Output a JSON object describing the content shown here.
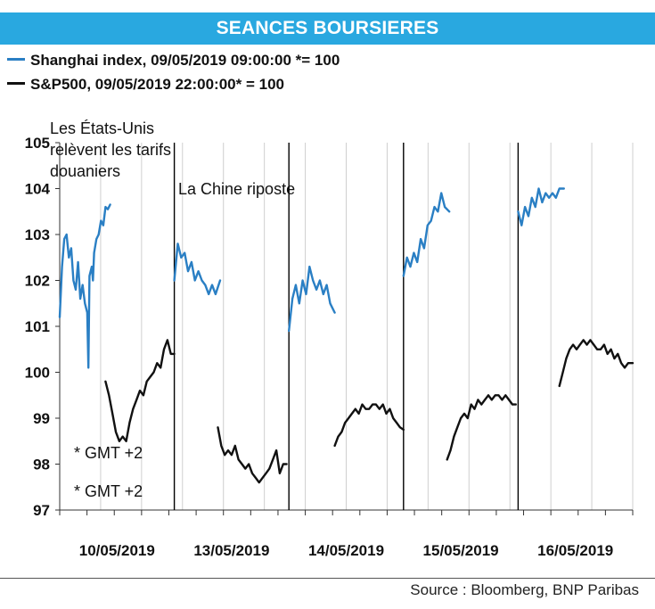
{
  "banner": {
    "title": "SEANCES BOURSIERES"
  },
  "legend": [
    {
      "label": "Shanghai index, 09/05/2019 09:00:00 *= 100",
      "color": "#2a7fc4"
    },
    {
      "label": "S&P500, 09/05/2019 22:00:00* = 100",
      "color": "#111111"
    }
  ],
  "source": "Source : Bloomberg, BNP Paribas",
  "chart_data": {
    "type": "line",
    "title": "SEANCES BOURSIERES",
    "xlabel": "",
    "ylabel": "",
    "ylim": [
      97,
      105
    ],
    "yticks": [
      97,
      98,
      99,
      100,
      101,
      102,
      103,
      104,
      105
    ],
    "x_day_labels": [
      "10/05/2019",
      "13/05/2019",
      "14/05/2019",
      "15/05/2019",
      "16/05/2019"
    ],
    "annotations": [
      {
        "text": "Les États-Unis relèvent les tarifs douaniers",
        "lines": [
          "Les États-Unis",
          "relèvent les tarifs",
          "douaniers"
        ]
      },
      {
        "text": "La Chine riposte"
      },
      {
        "text": "* GMT +2"
      },
      {
        "text": "* GMT +2"
      }
    ],
    "series": [
      {
        "name": "Shanghai index, 09/05/2019 09:00:00 *= 100",
        "color": "#2a7fc4",
        "sessions": [
          {
            "day": "10/05/2019",
            "x": [
              0.0,
              0.02,
              0.04,
              0.06,
              0.08,
              0.1,
              0.12,
              0.14,
              0.16,
              0.18,
              0.2,
              0.22,
              0.24,
              0.25,
              0.26,
              0.28,
              0.29,
              0.3,
              0.32,
              0.34,
              0.36,
              0.38,
              0.4,
              0.42,
              0.44
            ],
            "y": [
              101.2,
              102.3,
              102.9,
              103.0,
              102.5,
              102.7,
              102.0,
              101.8,
              102.4,
              101.6,
              101.9,
              101.5,
              101.3,
              100.1,
              102.1,
              102.3,
              102.0,
              102.6,
              102.9,
              103.0,
              103.3,
              103.2,
              103.6,
              103.55,
              103.65
            ]
          },
          {
            "day": "13/05/2019",
            "x": [
              0.0,
              0.03,
              0.06,
              0.09,
              0.12,
              0.15,
              0.18,
              0.21,
              0.24,
              0.27,
              0.3,
              0.33,
              0.36,
              0.4
            ],
            "y": [
              102.0,
              102.8,
              102.5,
              102.6,
              102.2,
              102.4,
              102.0,
              102.2,
              102.0,
              101.9,
              101.7,
              101.9,
              101.7,
              102.0
            ]
          },
          {
            "day": "14/05/2019",
            "x": [
              0.0,
              0.03,
              0.06,
              0.09,
              0.12,
              0.15,
              0.18,
              0.21,
              0.24,
              0.27,
              0.3,
              0.33,
              0.36,
              0.4
            ],
            "y": [
              100.9,
              101.6,
              101.9,
              101.5,
              102.0,
              101.7,
              102.3,
              102.0,
              101.8,
              102.0,
              101.7,
              101.9,
              101.5,
              101.3
            ]
          },
          {
            "day": "15/05/2019",
            "x": [
              0.0,
              0.03,
              0.06,
              0.09,
              0.12,
              0.15,
              0.18,
              0.21,
              0.24,
              0.27,
              0.3,
              0.33,
              0.36,
              0.4
            ],
            "y": [
              102.1,
              102.5,
              102.3,
              102.6,
              102.4,
              102.9,
              102.7,
              103.2,
              103.3,
              103.6,
              103.5,
              103.9,
              103.6,
              103.5
            ]
          },
          {
            "day": "16/05/2019",
            "x": [
              0.0,
              0.03,
              0.06,
              0.09,
              0.12,
              0.15,
              0.18,
              0.21,
              0.24,
              0.27,
              0.3,
              0.33,
              0.36,
              0.4
            ],
            "y": [
              103.5,
              103.2,
              103.6,
              103.4,
              103.8,
              103.6,
              104.0,
              103.7,
              103.9,
              103.8,
              103.9,
              103.8,
              104.0,
              104.0
            ]
          }
        ]
      },
      {
        "name": "S&P500, 09/05/2019 22:00:00* = 100",
        "color": "#111111",
        "sessions": [
          {
            "day": "10/05/2019",
            "x": [
              0.4,
              0.43,
              0.46,
              0.49,
              0.52,
              0.55,
              0.58,
              0.61,
              0.64,
              0.67,
              0.7,
              0.73,
              0.76,
              0.79,
              0.82,
              0.85,
              0.88,
              0.91,
              0.94,
              0.97,
              1.0
            ],
            "y": [
              99.8,
              99.5,
              99.1,
              98.7,
              98.5,
              98.6,
              98.5,
              98.9,
              99.2,
              99.4,
              99.6,
              99.5,
              99.8,
              99.9,
              100.0,
              100.2,
              100.1,
              100.5,
              100.7,
              100.4,
              100.4
            ]
          },
          {
            "day": "13/05/2019",
            "x": [
              0.38,
              0.41,
              0.44,
              0.47,
              0.5,
              0.53,
              0.56,
              0.59,
              0.62,
              0.65,
              0.68,
              0.71,
              0.74,
              0.77,
              0.8,
              0.83,
              0.86,
              0.89,
              0.92,
              0.95,
              0.98
            ],
            "y": [
              98.8,
              98.4,
              98.2,
              98.3,
              98.2,
              98.4,
              98.1,
              98.0,
              97.9,
              98.0,
              97.8,
              97.7,
              97.6,
              97.7,
              97.8,
              97.9,
              98.1,
              98.3,
              97.8,
              98.0,
              98.0
            ]
          },
          {
            "day": "14/05/2019",
            "x": [
              0.4,
              0.43,
              0.46,
              0.49,
              0.52,
              0.55,
              0.58,
              0.61,
              0.64,
              0.67,
              0.7,
              0.73,
              0.76,
              0.79,
              0.82,
              0.85,
              0.88,
              0.91,
              0.94,
              0.97,
              1.0
            ],
            "y": [
              98.4,
              98.6,
              98.7,
              98.9,
              99.0,
              99.1,
              99.2,
              99.1,
              99.3,
              99.2,
              99.2,
              99.3,
              99.3,
              99.2,
              99.3,
              99.1,
              99.2,
              99.0,
              98.9,
              98.8,
              98.75
            ]
          },
          {
            "day": "15/05/2019",
            "x": [
              0.38,
              0.41,
              0.44,
              0.47,
              0.5,
              0.53,
              0.56,
              0.59,
              0.62,
              0.65,
              0.68,
              0.71,
              0.74,
              0.77,
              0.8,
              0.83,
              0.86,
              0.89,
              0.92,
              0.95,
              0.98
            ],
            "y": [
              98.1,
              98.3,
              98.6,
              98.8,
              99.0,
              99.1,
              99.0,
              99.3,
              99.2,
              99.4,
              99.3,
              99.4,
              99.5,
              99.4,
              99.5,
              99.5,
              99.4,
              99.5,
              99.4,
              99.3,
              99.3
            ]
          },
          {
            "day": "16/05/2019",
            "x": [
              0.36,
              0.39,
              0.42,
              0.45,
              0.48,
              0.51,
              0.54,
              0.57,
              0.6,
              0.63,
              0.66,
              0.69,
              0.72,
              0.75,
              0.78,
              0.81,
              0.84,
              0.87,
              0.9,
              0.93,
              0.96,
              1.0
            ],
            "y": [
              99.7,
              100.0,
              100.3,
              100.5,
              100.6,
              100.5,
              100.6,
              100.7,
              100.6,
              100.7,
              100.6,
              100.5,
              100.5,
              100.6,
              100.4,
              100.5,
              100.3,
              100.4,
              100.2,
              100.1,
              100.2,
              100.2
            ]
          }
        ]
      }
    ]
  }
}
